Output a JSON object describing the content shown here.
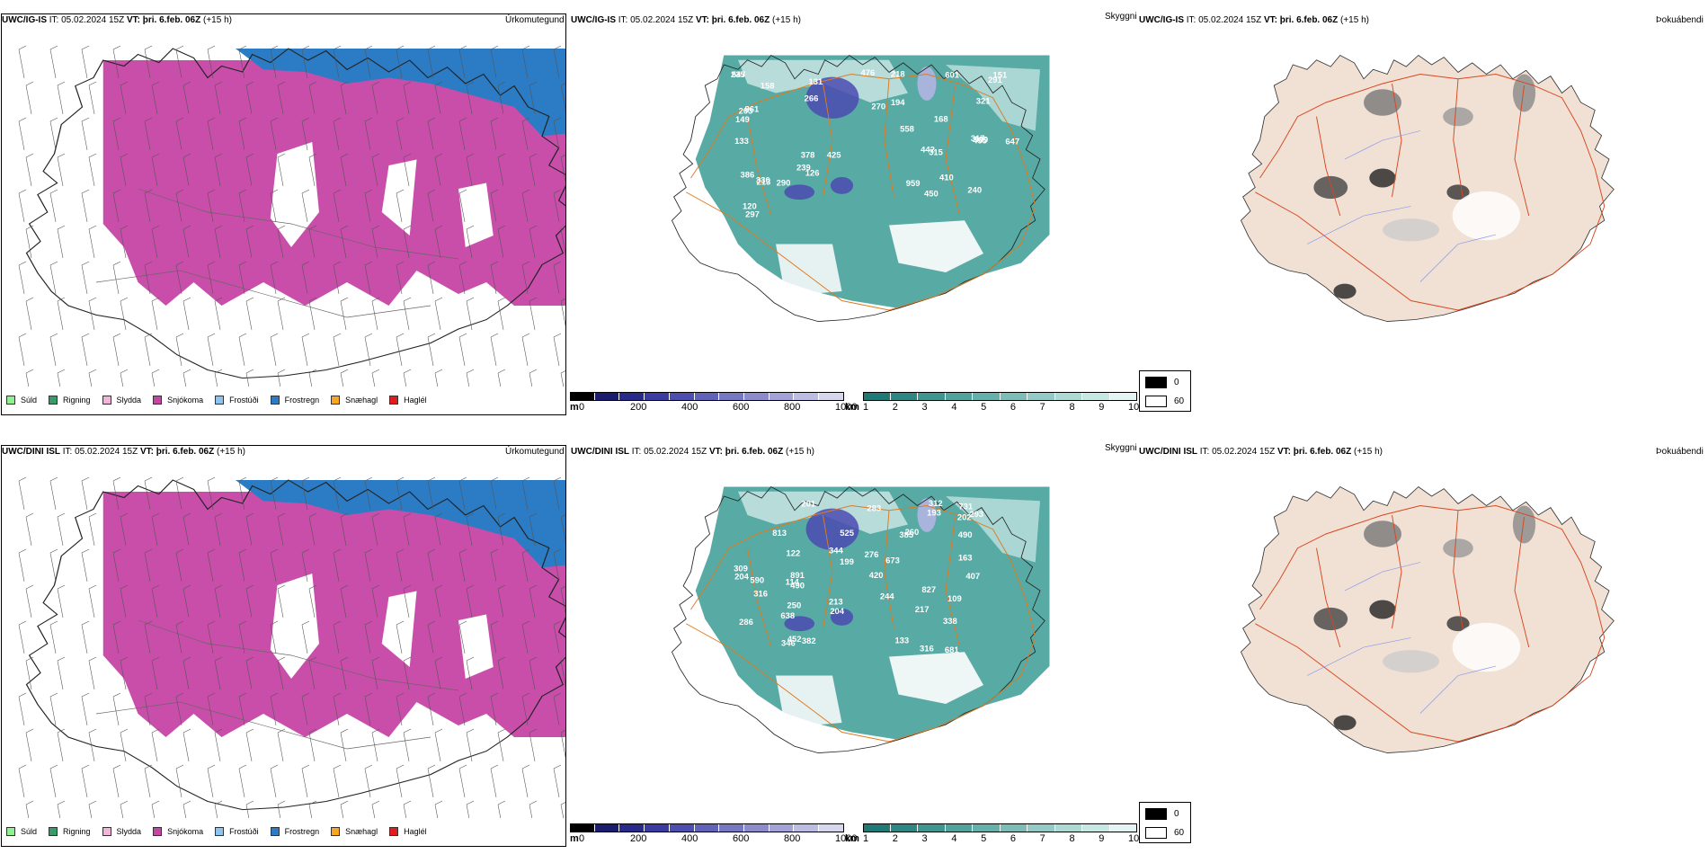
{
  "rows": [
    {
      "model": "UWC/IG-IS",
      "it_label": "IT:",
      "it_value": "05.02.2024 15Z",
      "vt_label": "VT:",
      "vt_value": "þri. 6.feb. 06Z",
      "lead": "(+15 h)",
      "cloud_labels": [
        "989",
        "330",
        "425",
        "297",
        "291",
        "158",
        "270",
        "476",
        "235",
        "203",
        "410",
        "455",
        "151",
        "194",
        "442",
        "315",
        "647",
        "558",
        "266",
        "861",
        "450",
        "290",
        "213",
        "218",
        "240",
        "239",
        "321",
        "386",
        "547",
        "601",
        "959",
        "133",
        "149",
        "120",
        "126",
        "317",
        "378",
        "168",
        "131"
      ]
    },
    {
      "model": "UWC/DINI ISL",
      "it_label": "IT:",
      "it_value": "05.02.2024 15Z",
      "vt_label": "VT:",
      "vt_value": "þri. 6.feb. 06Z",
      "lead": "(+15 h)",
      "cloud_labels": [
        "813",
        "316",
        "673",
        "283",
        "385",
        "276",
        "490",
        "250",
        "525",
        "293",
        "260",
        "638",
        "204",
        "199",
        "382",
        "827",
        "286",
        "407",
        "201",
        "891",
        "681",
        "133",
        "213",
        "338",
        "202",
        "490",
        "309",
        "346",
        "193",
        "731",
        "420",
        "452",
        "217",
        "244",
        "590",
        "122",
        "163",
        "114",
        "312",
        "316",
        "109",
        "204",
        "344"
      ]
    }
  ],
  "panel_titles": {
    "precip": "Úrkomutegund",
    "visibility": "Skyggni",
    "fog": "Þokuábendi"
  },
  "precip_legend": [
    {
      "label": "Súld",
      "color": "#8ff28f"
    },
    {
      "label": "Rigning",
      "color": "#3a9b6a"
    },
    {
      "label": "Slydda",
      "color": "#f4b4d8"
    },
    {
      "label": "Snjókoma",
      "color": "#c545a5"
    },
    {
      "label": "Frostúði",
      "color": "#8cc4ef"
    },
    {
      "label": "Frostregn",
      "color": "#2b7cc4"
    },
    {
      "label": "Snæhagl",
      "color": "#f5a623"
    },
    {
      "label": "Haglél",
      "color": "#e51a1a"
    }
  ],
  "cloud_base_bar": {
    "unit": "m",
    "ticks": [
      "0",
      "200",
      "400",
      "600",
      "800",
      "1000"
    ],
    "colors": [
      "#000000",
      "#1c1c6e",
      "#2a2a8a",
      "#3b3ba0",
      "#4e4eae",
      "#6262b8",
      "#7777c2",
      "#8c8ccc",
      "#a3a3d8",
      "#bdbde4",
      "#d6d6ef"
    ]
  },
  "visibility_bar": {
    "unit": "km",
    "ticks": [
      "1",
      "2",
      "3",
      "4",
      "5",
      "6",
      "7",
      "8",
      "9",
      "10"
    ],
    "colors": [
      "#1f7a75",
      "#2e8782",
      "#3f9590",
      "#52a39e",
      "#66b0ab",
      "#7cbdb8",
      "#94cbc6",
      "#addad5",
      "#c8e8e4",
      "#e4f4f2"
    ]
  },
  "fog_key": [
    {
      "label": "0",
      "color": "#000000"
    },
    {
      "label": "60",
      "color": "#ffffff"
    }
  ]
}
